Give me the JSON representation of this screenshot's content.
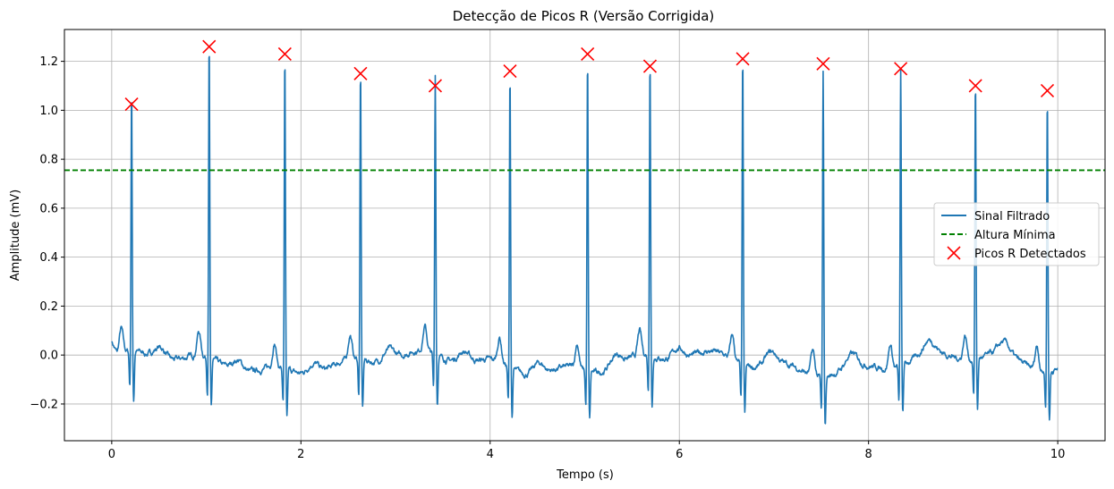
{
  "chart_data": {
    "type": "line",
    "title": "Detecção de Picos R (Versão Corrigida)",
    "xlabel": "Tempo (s)",
    "ylabel": "Amplitude (mV)",
    "xlim": [
      -0.5,
      10.5
    ],
    "ylim": [
      -0.35,
      1.33
    ],
    "x_ticks": [
      0,
      2,
      4,
      6,
      8,
      10
    ],
    "x_tick_labels": [
      "0",
      "2",
      "4",
      "6",
      "8",
      "10"
    ],
    "y_ticks": [
      -0.2,
      0.0,
      0.2,
      0.4,
      0.6,
      0.8,
      1.0,
      1.2
    ],
    "y_tick_labels": [
      "−0.2",
      "0.0",
      "0.2",
      "0.4",
      "0.6",
      "0.8",
      "1.0",
      "1.2"
    ],
    "grid": true,
    "legend_position": "center-right",
    "threshold": 0.755,
    "peaks_x": [
      0.21,
      1.03,
      1.83,
      2.63,
      3.42,
      4.21,
      5.03,
      5.69,
      6.67,
      7.52,
      8.34,
      9.13,
      9.89
    ],
    "peaks_y": [
      1.025,
      1.26,
      1.23,
      1.15,
      1.1,
      1.16,
      1.23,
      1.18,
      1.21,
      1.19,
      1.17,
      1.1,
      1.08
    ],
    "series": [
      {
        "name": "Sinal Filtrado",
        "color": "#1f77b4",
        "style": "solid"
      },
      {
        "name": "Altura Mínima",
        "color": "#008000",
        "style": "dashed"
      },
      {
        "name": "Picos R Detectados",
        "color": "#ff0000",
        "style": "x-marker"
      }
    ]
  }
}
